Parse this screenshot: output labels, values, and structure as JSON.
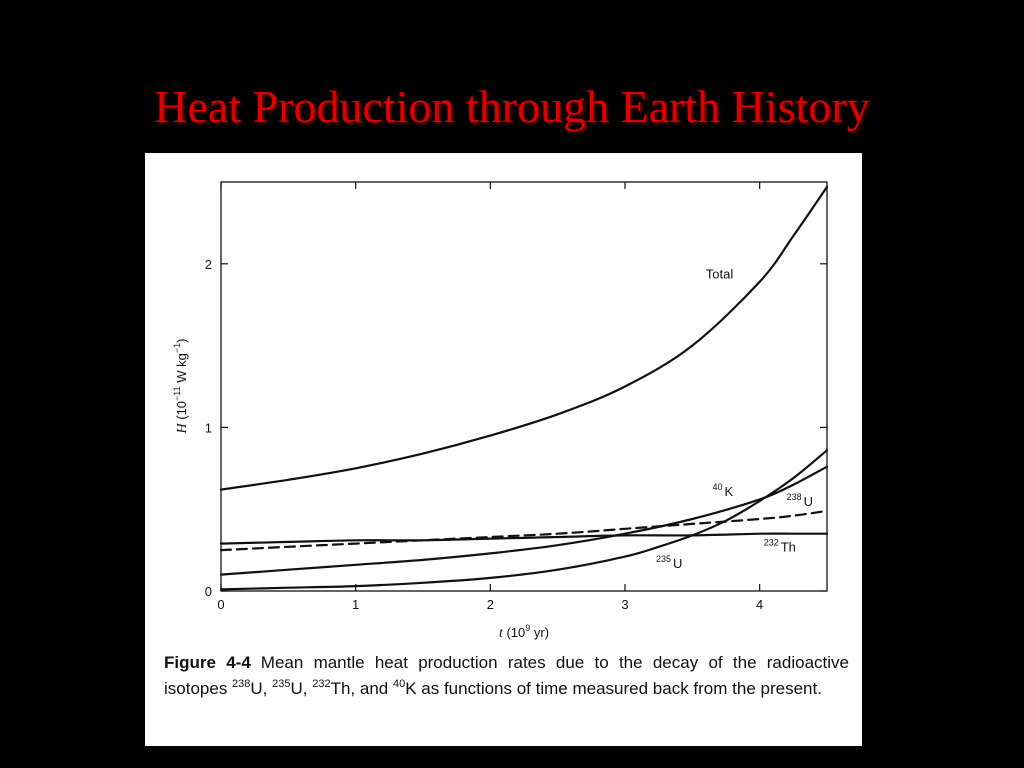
{
  "slide": {
    "title": "Heat Production through Earth History"
  },
  "colors": {
    "background": "#000000",
    "title": "#e00000",
    "panel": "#ffffff",
    "ink": "#111111"
  },
  "caption": {
    "figure_label": "Figure 4-4",
    "text_1": "Mean mantle heat production rates due to the decay of the radioactive isotopes ",
    "iso1_mass": "238",
    "iso1_sym": "U, ",
    "iso2_mass": "235",
    "iso2_sym": "U, ",
    "iso3_mass": "232",
    "iso3_sym": "Th, and ",
    "iso4_mass": "40",
    "iso4_sym": "K",
    "text_2": " as functions of time measured back from the present."
  },
  "chart_data": {
    "type": "line",
    "xlabel": {
      "var": "t",
      "unit_base": " (10",
      "unit_exp": "9",
      "unit_tail": " yr)"
    },
    "ylabel": {
      "var": "H",
      "unit_base": " (10",
      "unit_exp1": "−11",
      "unit_mid": " W kg",
      "unit_exp2": "−1",
      "unit_tail": ")"
    },
    "xlim": [
      0,
      4.5
    ],
    "ylim": [
      0,
      2.5
    ],
    "xticks": [
      "0",
      "1",
      "2",
      "3",
      "4"
    ],
    "yticks": [
      "0",
      "1",
      "2"
    ],
    "series": [
      {
        "name": "Total",
        "label_mass": "",
        "label_sym": "Total",
        "label_at": [
          3.6,
          1.91
        ],
        "dash": false,
        "x": [
          0,
          0.5,
          1,
          1.5,
          2,
          2.5,
          3,
          3.5,
          4,
          4.25,
          4.5
        ],
        "y": [
          0.62,
          0.68,
          0.75,
          0.84,
          0.95,
          1.08,
          1.25,
          1.5,
          1.89,
          2.17,
          2.47
        ]
      },
      {
        "name": "40K",
        "label_mass": "40",
        "label_sym": "K",
        "label_at": [
          3.65,
          0.58
        ],
        "dash": false,
        "x": [
          0,
          0.5,
          1,
          1.5,
          2,
          2.5,
          3,
          3.5,
          4,
          4.25,
          4.5
        ],
        "y": [
          0.1,
          0.13,
          0.16,
          0.19,
          0.23,
          0.28,
          0.35,
          0.44,
          0.56,
          0.65,
          0.76
        ]
      },
      {
        "name": "238U",
        "label_mass": "238",
        "label_sym": "U",
        "label_at": [
          4.2,
          0.52
        ],
        "dash": true,
        "x": [
          0,
          0.5,
          1,
          1.5,
          2,
          2.5,
          3,
          3.5,
          4,
          4.25,
          4.5
        ],
        "y": [
          0.25,
          0.27,
          0.29,
          0.31,
          0.33,
          0.35,
          0.38,
          0.41,
          0.44,
          0.46,
          0.49
        ]
      },
      {
        "name": "232Th",
        "label_mass": "232",
        "label_sym": "Th",
        "label_at": [
          4.03,
          0.24
        ],
        "dash": false,
        "x": [
          0,
          0.5,
          1,
          1.5,
          2,
          2.5,
          3,
          3.5,
          4,
          4.25,
          4.5
        ],
        "y": [
          0.29,
          0.3,
          0.31,
          0.31,
          0.32,
          0.33,
          0.34,
          0.34,
          0.35,
          0.35,
          0.35
        ]
      },
      {
        "name": "235U",
        "label_mass": "235",
        "label_sym": "U",
        "label_at": [
          3.23,
          0.14
        ],
        "dash": false,
        "x": [
          0,
          0.5,
          1,
          1.5,
          2,
          2.5,
          3,
          3.25,
          3.5,
          3.75,
          4,
          4.25,
          4.5
        ],
        "y": [
          0.01,
          0.02,
          0.03,
          0.05,
          0.08,
          0.13,
          0.21,
          0.27,
          0.34,
          0.43,
          0.55,
          0.69,
          0.86
        ]
      }
    ]
  }
}
